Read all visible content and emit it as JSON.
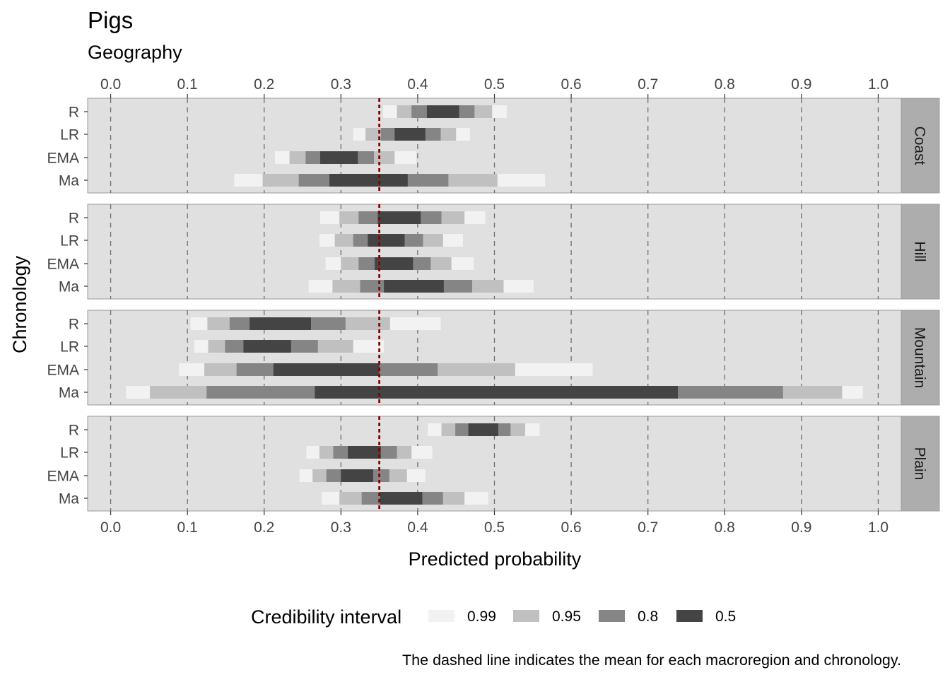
{
  "chart_data": {
    "type": "interval",
    "title": "Pigs",
    "subtitle": "Geography",
    "xlabel": "Predicted probability",
    "ylabel": "Chronology",
    "caption": "The dashed line indicates the mean for each macroregion and chronology.",
    "xlim": [
      -0.03,
      1.03
    ],
    "x_ticks": [
      "0.0",
      "0.1",
      "0.2",
      "0.3",
      "0.4",
      "0.5",
      "0.6",
      "0.7",
      "0.8",
      "0.9",
      "1.0"
    ],
    "x_tick_values": [
      0.0,
      0.1,
      0.2,
      0.3,
      0.4,
      0.5,
      0.6,
      0.7,
      0.8,
      0.9,
      1.0
    ],
    "mean_line": 0.35,
    "grid": "vertical dashed",
    "legend": {
      "title": "Credibility interval",
      "position": "bottom",
      "levels": [
        "0.99",
        "0.95",
        "0.8",
        "0.5"
      ],
      "colors": [
        "#f2f2f2",
        "#c0c0c0",
        "#858585",
        "#444444"
      ]
    },
    "colors": {
      "panel_bg": "#e0e0e0",
      "strip_bg": "#adadad",
      "mean_line": "#8b0000",
      "grid": "#6e6e6e"
    },
    "chronology": [
      "R",
      "LR",
      "EMA",
      "Ma"
    ],
    "panels": [
      {
        "label": "Coast",
        "rows": [
          {
            "chronology": "R",
            "i99": [
              0.355,
              0.516
            ],
            "i95": [
              0.373,
              0.497
            ],
            "i80": [
              0.392,
              0.474
            ],
            "i50": [
              0.412,
              0.454
            ]
          },
          {
            "chronology": "LR",
            "i99": [
              0.316,
              0.468
            ],
            "i95": [
              0.332,
              0.45
            ],
            "i80": [
              0.352,
              0.43
            ],
            "i50": [
              0.37,
              0.41
            ]
          },
          {
            "chronology": "EMA",
            "i99": [
              0.214,
              0.398
            ],
            "i95": [
              0.233,
              0.37
            ],
            "i80": [
              0.254,
              0.343
            ],
            "i50": [
              0.273,
              0.322
            ]
          },
          {
            "chronology": "Ma",
            "i99": [
              0.161,
              0.566
            ],
            "i95": [
              0.198,
              0.504
            ],
            "i80": [
              0.245,
              0.44
            ],
            "i50": [
              0.285,
              0.387
            ]
          }
        ]
      },
      {
        "label": "Hill",
        "rows": [
          {
            "chronology": "R",
            "i99": [
              0.273,
              0.488
            ],
            "i95": [
              0.298,
              0.461
            ],
            "i80": [
              0.323,
              0.431
            ],
            "i50": [
              0.348,
              0.404
            ]
          },
          {
            "chronology": "LR",
            "i99": [
              0.272,
              0.459
            ],
            "i95": [
              0.292,
              0.433
            ],
            "i80": [
              0.316,
              0.407
            ],
            "i50": [
              0.335,
              0.383
            ]
          },
          {
            "chronology": "EMA",
            "i99": [
              0.28,
              0.473
            ],
            "i95": [
              0.3,
              0.444
            ],
            "i80": [
              0.323,
              0.417
            ],
            "i50": [
              0.344,
              0.394
            ]
          },
          {
            "chronology": "Ma",
            "i99": [
              0.258,
              0.551
            ],
            "i95": [
              0.289,
              0.512
            ],
            "i80": [
              0.325,
              0.471
            ],
            "i50": [
              0.356,
              0.434
            ]
          }
        ]
      },
      {
        "label": "Mountain",
        "rows": [
          {
            "chronology": "R",
            "i99": [
              0.104,
              0.43
            ],
            "i95": [
              0.126,
              0.364
            ],
            "i80": [
              0.155,
              0.306
            ],
            "i50": [
              0.181,
              0.261
            ]
          },
          {
            "chronology": "LR",
            "i99": [
              0.109,
              0.356
            ],
            "i95": [
              0.127,
              0.316
            ],
            "i80": [
              0.149,
              0.27
            ],
            "i50": [
              0.173,
              0.235
            ]
          },
          {
            "chronology": "EMA",
            "i99": [
              0.089,
              0.628
            ],
            "i95": [
              0.122,
              0.527
            ],
            "i80": [
              0.164,
              0.426
            ],
            "i50": [
              0.212,
              0.35
            ]
          },
          {
            "chronology": "Ma",
            "i99": [
              0.02,
              0.98
            ],
            "i95": [
              0.051,
              0.953
            ],
            "i80": [
              0.125,
              0.876
            ],
            "i50": [
              0.266,
              0.739
            ]
          }
        ]
      },
      {
        "label": "Plain",
        "rows": [
          {
            "chronology": "R",
            "i99": [
              0.413,
              0.559
            ],
            "i95": [
              0.431,
              0.54
            ],
            "i80": [
              0.449,
              0.521
            ],
            "i50": [
              0.466,
              0.505
            ]
          },
          {
            "chronology": "LR",
            "i99": [
              0.255,
              0.419
            ],
            "i95": [
              0.272,
              0.392
            ],
            "i80": [
              0.29,
              0.373
            ],
            "i50": [
              0.309,
              0.352
            ]
          },
          {
            "chronology": "EMA",
            "i99": [
              0.246,
              0.41
            ],
            "i95": [
              0.263,
              0.386
            ],
            "i80": [
              0.281,
              0.363
            ],
            "i50": [
              0.3,
              0.342
            ]
          },
          {
            "chronology": "Ma",
            "i99": [
              0.275,
              0.492
            ],
            "i95": [
              0.298,
              0.461
            ],
            "i80": [
              0.327,
              0.433
            ],
            "i50": [
              0.351,
              0.406
            ]
          }
        ]
      }
    ]
  }
}
